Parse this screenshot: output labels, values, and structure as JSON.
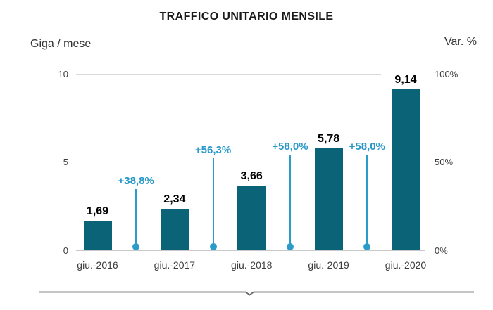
{
  "chart_data": {
    "type": "bar",
    "title": "TRAFFICO UNITARIO MENSILE",
    "ylabel": "Giga / mese",
    "y2label": "Var. %",
    "categories": [
      "giu.-2016",
      "giu.-2017",
      "giu.-2018",
      "giu.-2019",
      "giu.-2020"
    ],
    "series": [
      {
        "name": "Traffico unitario mensile",
        "type": "bar",
        "axis": "left",
        "values": [
          1.69,
          2.34,
          3.66,
          5.78,
          9.14
        ],
        "value_labels": [
          "1,69",
          "2,34",
          "3,66",
          "5,78",
          "9,14"
        ]
      },
      {
        "name": "Variazione percentuale",
        "type": "lollipop",
        "axis": "right",
        "placement": "between-categories",
        "values": [
          38.8,
          56.3,
          58.0,
          58.0
        ],
        "value_labels": [
          "+38,8%",
          "+56,3%",
          "+58,0%",
          "+58,0%"
        ]
      }
    ],
    "yticks": [
      {
        "v": 0,
        "label": "0"
      },
      {
        "v": 5,
        "label": "5"
      },
      {
        "v": 10,
        "label": "10"
      }
    ],
    "y2ticks": [
      {
        "v": 0,
        "label": "0%"
      },
      {
        "v": 50,
        "label": "50%"
      },
      {
        "v": 100,
        "label": "100%"
      }
    ],
    "ylim": [
      0,
      10
    ],
    "y2lim": [
      0,
      100
    ],
    "grid": true,
    "legend": false
  },
  "colors": {
    "bar": "#0b6378",
    "marker": "#2b9cc9",
    "grid": "#d9d9d9",
    "axis_text": "#3d3d3d",
    "title_text": "#1b1b1b",
    "divider": "#666666"
  }
}
